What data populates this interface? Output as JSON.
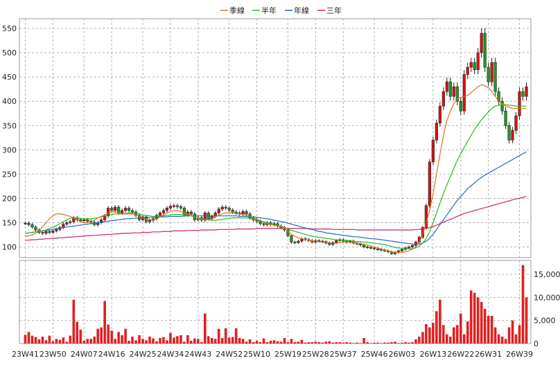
{
  "chart_data": {
    "type": "candlestick",
    "price_axis": {
      "ticks": [
        100,
        150,
        200,
        250,
        300,
        350,
        400,
        450,
        500,
        550
      ],
      "range": [
        78,
        570
      ]
    },
    "volume_axis": {
      "ticks": [
        0,
        5000,
        10000,
        15000
      ],
      "tick_labels": [
        "0",
        "5,000",
        "10,000",
        "15,000"
      ],
      "range": [
        0,
        18000
      ]
    },
    "x_tick_labels": [
      "23W41",
      "23W50",
      "24W07",
      "24W16",
      "24W25",
      "24W34",
      "24W43",
      "24W52",
      "25W10",
      "25W19",
      "25W28",
      "25W37",
      "25W46",
      "26W03",
      "26W13",
      "26W22",
      "26W31",
      "26W39"
    ],
    "legend": [
      {
        "label": "季線",
        "color": "#e07020"
      },
      {
        "label": "半年",
        "color": "#22bb22"
      },
      {
        "label": "年線",
        "color": "#2266cc"
      },
      {
        "label": "三年",
        "color": "#cc2266"
      }
    ],
    "close": [
      149,
      146,
      141,
      135,
      130,
      128,
      132,
      130,
      133,
      136,
      140,
      147,
      150,
      152,
      160,
      156,
      154,
      156,
      153,
      151,
      146,
      150,
      156,
      164,
      180,
      175,
      182,
      170,
      175,
      180,
      175,
      172,
      165,
      156,
      162,
      152,
      155,
      158,
      165,
      170,
      175,
      180,
      184,
      185,
      183,
      180,
      166,
      172,
      168,
      156,
      160,
      155,
      170,
      158,
      163,
      170,
      178,
      182,
      180,
      176,
      172,
      170,
      168,
      173,
      168,
      160,
      156,
      153,
      148,
      146,
      150,
      146,
      148,
      143,
      140,
      135,
      123,
      110,
      109,
      112,
      117,
      115,
      113,
      110,
      113,
      112,
      111,
      108,
      105,
      109,
      113,
      115,
      112,
      110,
      112,
      108,
      106,
      104,
      100,
      99,
      98,
      96,
      95,
      94,
      92,
      90,
      86,
      89,
      92,
      95,
      98,
      100,
      103,
      110,
      120,
      140,
      185,
      275,
      320,
      355,
      390,
      420,
      440,
      410,
      430,
      400,
      380,
      455,
      470,
      480,
      465,
      500,
      540,
      470,
      440,
      480,
      420,
      400,
      380,
      350,
      320,
      340,
      370,
      420,
      410,
      430
    ],
    "ma_season": [
      122,
      123,
      125,
      128,
      133,
      142,
      150,
      158,
      164,
      168,
      168,
      167,
      165,
      163,
      160,
      156,
      152,
      150,
      150,
      152,
      155,
      160,
      163,
      166,
      170,
      172,
      172,
      170,
      168,
      168,
      168,
      168,
      166,
      163,
      160,
      157,
      156,
      156,
      158,
      162,
      166,
      170,
      173,
      175,
      175,
      173,
      170,
      168,
      166,
      162,
      158,
      156,
      156,
      156,
      158,
      162,
      165,
      168,
      170,
      170,
      170,
      169,
      168,
      167,
      166,
      163,
      160,
      157,
      154,
      151,
      148,
      146,
      145,
      143,
      141,
      138,
      132,
      126,
      122,
      119,
      117,
      115,
      114,
      113,
      112,
      111,
      110,
      109,
      109,
      108,
      108,
      109,
      109,
      110,
      110,
      109,
      108,
      107,
      105,
      104,
      102,
      100,
      98,
      96,
      94,
      92,
      90,
      89,
      89,
      89,
      90,
      92,
      96,
      100,
      110,
      125,
      150,
      175,
      210,
      250,
      290,
      330,
      360,
      380,
      395,
      405,
      408,
      410,
      412,
      418,
      424,
      430,
      434,
      432,
      428,
      420,
      410,
      400,
      395,
      390,
      388,
      385,
      385,
      385,
      385,
      385
    ],
    "ma_half": [
      128,
      129,
      130,
      131,
      132,
      133,
      135,
      138,
      141,
      144,
      148,
      152,
      156,
      159,
      160,
      160,
      159,
      158,
      158,
      158,
      159,
      160,
      162,
      164,
      166,
      167,
      168,
      168,
      168,
      169,
      170,
      170,
      169,
      168,
      166,
      165,
      164,
      163,
      163,
      163,
      164,
      165,
      166,
      167,
      167,
      167,
      166,
      165,
      164,
      162,
      160,
      158,
      157,
      156,
      155,
      155,
      156,
      157,
      158,
      159,
      160,
      160,
      160,
      160,
      160,
      159,
      158,
      156,
      154,
      152,
      150,
      148,
      146,
      144,
      142,
      140,
      137,
      134,
      132,
      130,
      128,
      126,
      124,
      122,
      121,
      120,
      119,
      118,
      117,
      116,
      115,
      114,
      114,
      113,
      113,
      112,
      111,
      111,
      110,
      110,
      109,
      108,
      107,
      106,
      105,
      103,
      101,
      99,
      98,
      97,
      96,
      96,
      96,
      98,
      102,
      108,
      118,
      132,
      150,
      170,
      190,
      210,
      228,
      245,
      262,
      278,
      292,
      305,
      318,
      330,
      342,
      352,
      362,
      370,
      378,
      385,
      390,
      392,
      393,
      393,
      392,
      391,
      390,
      390,
      390,
      390
    ],
    "ma_year": [
      128,
      129,
      130,
      131,
      132,
      133,
      134,
      135,
      136,
      138,
      139,
      140,
      141,
      142,
      143,
      144,
      145,
      146,
      147,
      148,
      149,
      150,
      151,
      152,
      153,
      154,
      155,
      156,
      157,
      158,
      158,
      159,
      159,
      160,
      160,
      160,
      161,
      161,
      161,
      162,
      162,
      162,
      163,
      163,
      163,
      163,
      164,
      164,
      164,
      164,
      164,
      164,
      164,
      164,
      164,
      164,
      164,
      164,
      164,
      164,
      164,
      164,
      163,
      163,
      163,
      162,
      162,
      161,
      160,
      159,
      158,
      157,
      155,
      154,
      152,
      151,
      149,
      147,
      145,
      143,
      141,
      139,
      137,
      136,
      134,
      132,
      131,
      129,
      128,
      127,
      126,
      125,
      124,
      123,
      122,
      121,
      121,
      120,
      119,
      118,
      117,
      117,
      116,
      115,
      114,
      113,
      112,
      111,
      110,
      109,
      108,
      107,
      106,
      105,
      106,
      108,
      112,
      118,
      126,
      136,
      146,
      156,
      166,
      176,
      186,
      196,
      204,
      212,
      220,
      226,
      232,
      238,
      243,
      248,
      252,
      256,
      260,
      264,
      268,
      272,
      276,
      280,
      284,
      288,
      292,
      296
    ],
    "ma_3y": [
      114,
      114,
      115,
      115,
      116,
      116,
      117,
      117,
      118,
      118,
      119,
      119,
      120,
      120,
      121,
      121,
      122,
      122,
      123,
      123,
      124,
      124,
      125,
      125,
      126,
      126,
      127,
      127,
      128,
      128,
      128,
      129,
      129,
      129,
      130,
      130,
      130,
      131,
      131,
      131,
      132,
      132,
      132,
      133,
      133,
      133,
      133,
      134,
      134,
      134,
      134,
      135,
      135,
      135,
      135,
      135,
      136,
      136,
      136,
      136,
      136,
      137,
      137,
      137,
      137,
      137,
      137,
      138,
      138,
      138,
      138,
      138,
      138,
      138,
      138,
      138,
      138,
      138,
      138,
      138,
      138,
      138,
      138,
      137,
      137,
      137,
      137,
      137,
      137,
      136,
      136,
      136,
      136,
      136,
      136,
      136,
      135,
      135,
      135,
      135,
      135,
      135,
      135,
      135,
      135,
      135,
      135,
      135,
      135,
      135,
      135,
      135,
      135,
      136,
      136,
      137,
      138,
      140,
      142,
      145,
      148,
      151,
      154,
      157,
      160,
      163,
      166,
      169,
      171,
      173,
      175,
      177,
      179,
      181,
      183,
      185,
      187,
      189,
      191,
      193,
      195,
      197,
      199,
      200,
      202,
      204
    ],
    "volume": [
      1900,
      2500,
      1700,
      1400,
      900,
      1500,
      700,
      1700,
      500,
      1000,
      800,
      1300,
      400,
      1700,
      9500,
      4700,
      3000,
      600,
      1000,
      1000,
      1500,
      3200,
      3500,
      9200,
      4100,
      2800,
      1000,
      2500,
      1800,
      3200,
      600,
      1500,
      700,
      1800,
      1000,
      700,
      1500,
      1100,
      500,
      1200,
      1400,
      700,
      2300,
      1300,
      1600,
      1800,
      400,
      1800,
      600,
      1100,
      1000,
      300,
      6500,
      1600,
      1200,
      1000,
      3200,
      1200,
      3300,
      1300,
      1400,
      3300,
      1200,
      1000,
      400,
      900,
      300,
      600,
      300,
      1100,
      300,
      600,
      700,
      500,
      400,
      1200,
      300,
      1000,
      300,
      400,
      800,
      200,
      300,
      300,
      400,
      300,
      200,
      400,
      500,
      200,
      300,
      300,
      200,
      300,
      200,
      100,
      200,
      100,
      1200,
      300,
      100,
      200,
      200,
      100,
      200,
      200,
      300,
      400,
      100,
      200,
      300,
      200,
      300,
      900,
      1500,
      2500,
      4200,
      3500,
      4500,
      7000,
      9500,
      4000,
      2000,
      1500,
      3500,
      4000,
      6500,
      2000,
      4800,
      11500,
      11000,
      10000,
      9000,
      7500,
      6000,
      6000,
      3500,
      2000,
      1500,
      1000,
      3500,
      5000,
      2000,
      4000,
      17000,
      10000
    ]
  }
}
